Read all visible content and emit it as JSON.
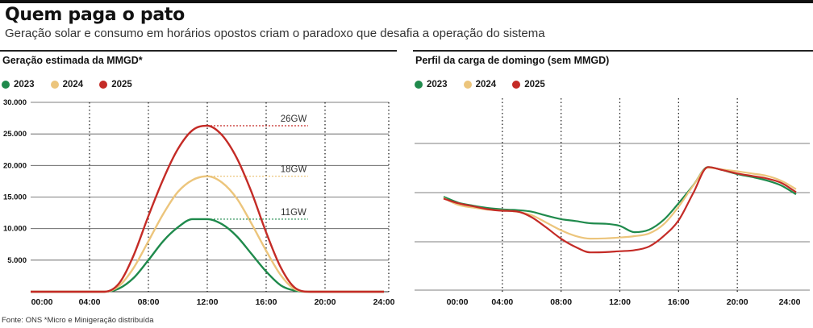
{
  "header": {
    "title": "Quem paga o pato",
    "subtitle": "Geração solar e consumo em horários opostos criam o paradoxo que desafia a operação do sistema"
  },
  "footer": {
    "source": "Fonte: ONS  *Micro e Minigeração distribuída"
  },
  "colors": {
    "2023": "#1f8a4c",
    "2024": "#ecc57c",
    "2025": "#c42b26"
  },
  "chart_data": [
    {
      "type": "line",
      "title": "Geração estimada da MMGD*",
      "legend": [
        "2023",
        "2024",
        "2025"
      ],
      "legend_position": "top-left",
      "x_ticks": [
        "00:00",
        "04:00",
        "08:00",
        "12:00",
        "16:00",
        "20:00",
        "24:00"
      ],
      "y_ticks": [
        "5.000",
        "10.000",
        "15.000",
        "20.000",
        "25.000",
        "30.000"
      ],
      "ylim": [
        0,
        30000
      ],
      "xlim": [
        0,
        24
      ],
      "grid": "horizontal solid, vertical dotted at tick hours",
      "series": [
        {
          "name": "2023",
          "x": [
            0,
            5,
            6,
            7,
            8,
            9,
            10,
            11,
            12,
            13,
            14,
            15,
            16,
            17,
            18,
            19,
            24
          ],
          "values": [
            0,
            0,
            500,
            2200,
            5000,
            8000,
            10200,
            11500,
            11500,
            10700,
            8800,
            6000,
            3200,
            1000,
            150,
            0,
            0
          ]
        },
        {
          "name": "2024",
          "x": [
            0,
            5,
            6,
            7,
            8,
            9,
            10,
            11,
            12,
            13,
            14,
            15,
            16,
            17,
            18,
            19,
            24
          ],
          "values": [
            0,
            0,
            900,
            3800,
            8000,
            12300,
            15800,
            17700,
            18300,
            17300,
            14800,
            10800,
            6500,
            2600,
            350,
            0,
            0
          ]
        },
        {
          "name": "2025",
          "x": [
            0,
            5,
            6,
            7,
            8,
            9,
            10,
            11,
            12,
            13,
            14,
            15,
            16,
            17,
            18,
            19,
            24
          ],
          "values": [
            0,
            0,
            1300,
            5800,
            12000,
            17800,
            22600,
            25600,
            26300,
            24800,
            21200,
            15800,
            9400,
            3800,
            550,
            0,
            0
          ]
        }
      ],
      "annotations": [
        {
          "label": "26GW",
          "x": 12,
          "y": 26300,
          "series": "2025"
        },
        {
          "label": "18GW",
          "x": 12,
          "y": 18300,
          "series": "2024"
        },
        {
          "label": "11GW",
          "x": 12,
          "y": 11500,
          "series": "2023"
        }
      ]
    },
    {
      "type": "line",
      "title": "Perfil da carga de domingo (sem MMGD)",
      "legend": [
        "2023",
        "2024",
        "2025"
      ],
      "legend_position": "top-left",
      "x_ticks": [
        "00:00",
        "04:00",
        "08:00",
        "12:00",
        "16:00",
        "20:00",
        "24:00"
      ],
      "y_ticks": [],
      "xlim": [
        0,
        24
      ],
      "ylim": [
        0,
        1
      ],
      "grid": "horizontal solid, vertical dotted at tick hours",
      "series": [
        {
          "name": "2023",
          "x": [
            0,
            1,
            2,
            3,
            4,
            5,
            6,
            7,
            8,
            9,
            10,
            11,
            12,
            13,
            14,
            15,
            16,
            17,
            18,
            19,
            20,
            21,
            22,
            23,
            24
          ],
          "values": [
            0.57,
            0.523,
            0.499,
            0.48,
            0.469,
            0.463,
            0.45,
            0.418,
            0.39,
            0.375,
            0.357,
            0.353,
            0.336,
            0.285,
            0.305,
            0.386,
            0.518,
            0.663,
            0.81,
            0.785,
            0.753,
            0.73,
            0.702,
            0.661,
            0.59
          ]
        },
        {
          "name": "2024",
          "x": [
            0,
            1,
            2,
            3,
            4,
            5,
            6,
            7,
            8,
            9,
            10,
            11,
            12,
            13,
            14,
            15,
            16,
            17,
            18,
            19,
            20,
            21,
            22,
            23,
            24
          ],
          "values": [
            0.56,
            0.505,
            0.483,
            0.466,
            0.46,
            0.45,
            0.422,
            0.362,
            0.3,
            0.254,
            0.233,
            0.235,
            0.242,
            0.253,
            0.275,
            0.35,
            0.49,
            0.66,
            0.805,
            0.79,
            0.775,
            0.758,
            0.739,
            0.699,
            0.632
          ]
        },
        {
          "name": "2025",
          "x": [
            0,
            1,
            2,
            3,
            4,
            5,
            6,
            7,
            8,
            9,
            10,
            11,
            12,
            13,
            14,
            15,
            16,
            17,
            18,
            19,
            20,
            21,
            22,
            23,
            24
          ],
          "values": [
            0.555,
            0.518,
            0.494,
            0.47,
            0.458,
            0.452,
            0.405,
            0.322,
            0.232,
            0.165,
            0.122,
            0.124,
            0.132,
            0.14,
            0.17,
            0.255,
            0.38,
            0.6,
            0.81,
            0.785,
            0.758,
            0.738,
            0.718,
            0.682,
            0.608
          ]
        }
      ]
    }
  ]
}
